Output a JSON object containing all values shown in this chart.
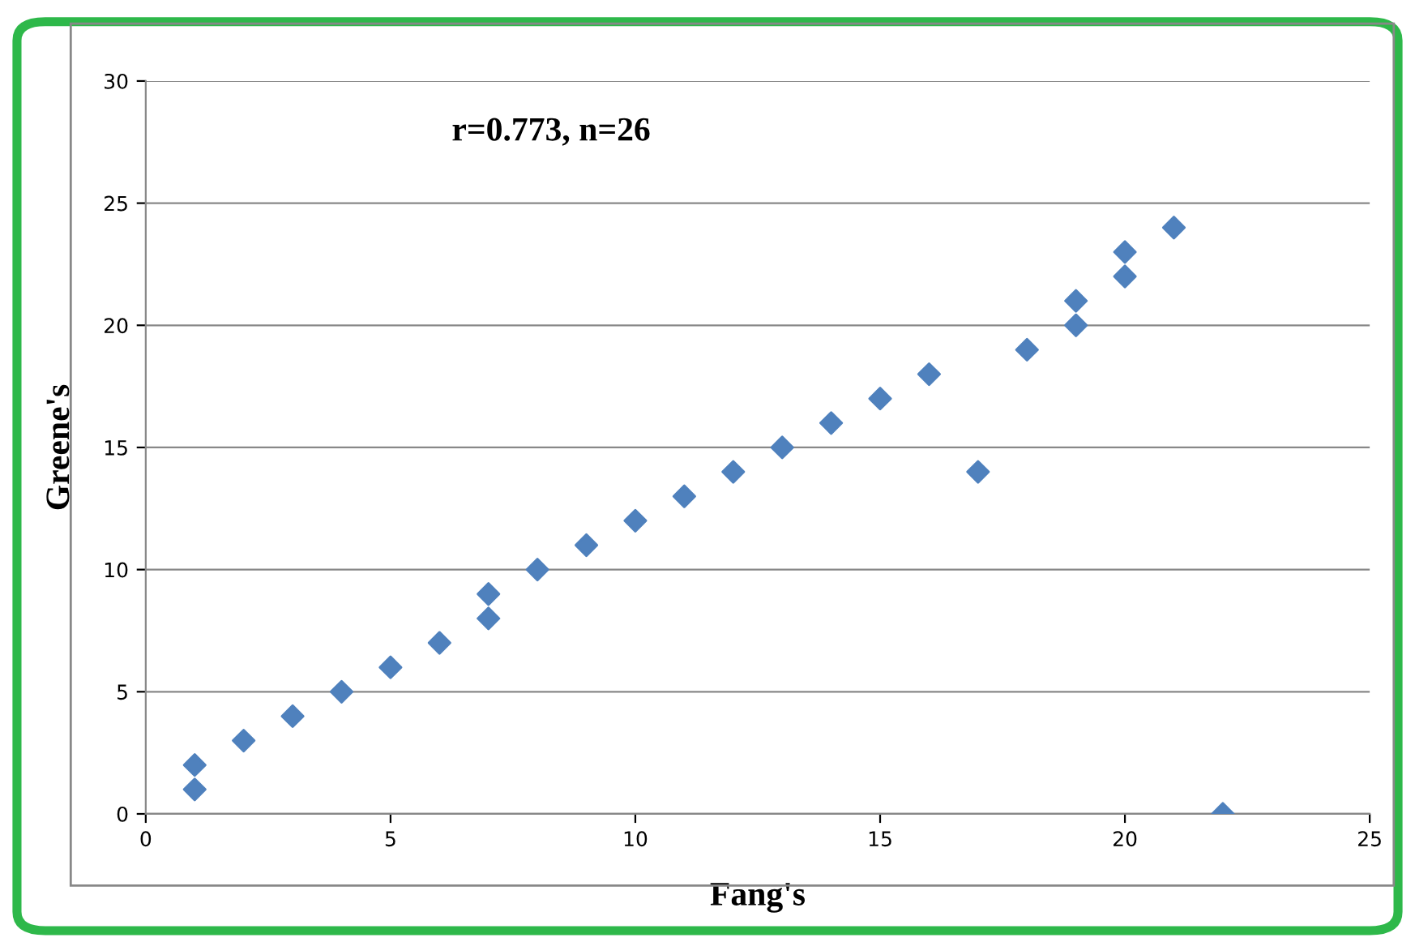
{
  "chart_data": {
    "type": "scatter",
    "xlabel": "Fang's",
    "ylabel": "Greene's",
    "annotations": [
      "r=0.773, n=26"
    ],
    "series": [
      {
        "color": "#4f81bd",
        "x": [
          1,
          1,
          2,
          3,
          4,
          5,
          6,
          7,
          7,
          8,
          9,
          10,
          11,
          12,
          13,
          14,
          15,
          16,
          17,
          18,
          19,
          19,
          20,
          20,
          21,
          22
        ],
        "values": [
          2,
          1,
          3,
          4,
          5,
          6,
          7,
          9,
          8,
          10,
          11,
          12,
          13,
          14,
          15,
          16,
          17,
          18,
          14,
          19,
          21,
          20,
          23,
          22,
          24,
          0
        ]
      }
    ],
    "xlim": [
      0,
      25
    ],
    "xticks": [
      0,
      5,
      10,
      15,
      20,
      25
    ],
    "ylim": [
      0,
      30
    ],
    "yticks": [
      0,
      5,
      10,
      15,
      20,
      25,
      30
    ],
    "grid": "y",
    "marker": "diamond"
  }
}
